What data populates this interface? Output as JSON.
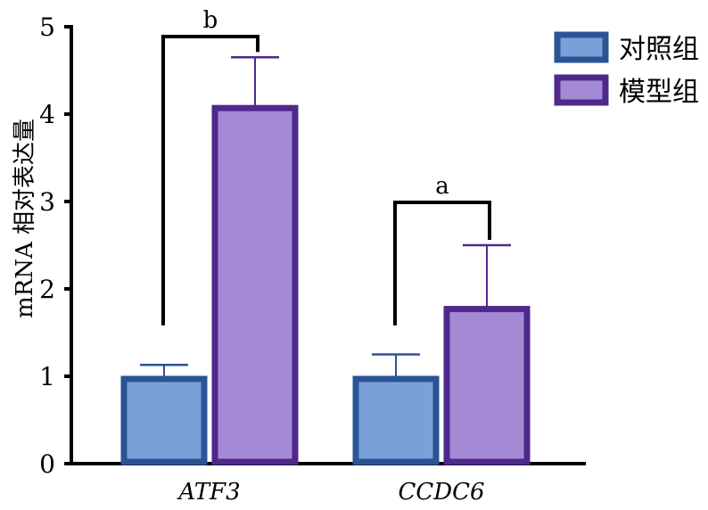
{
  "chart_data": {
    "type": "bar",
    "title": "",
    "xlabel": "",
    "ylabel": "mRNA 相对表达量",
    "ylim": [
      0,
      5
    ],
    "yticks": [
      "0",
      "1",
      "2",
      "3",
      "4",
      "5"
    ],
    "categories": [
      "ATF3",
      "CCDC6"
    ],
    "series": [
      {
        "name": "对照组",
        "values": [
          1.0,
          1.0
        ],
        "errors": [
          0.13,
          0.25
        ],
        "fill": "#7BA0D8",
        "border": "#2B5497"
      },
      {
        "name": "模型组",
        "values": [
          4.1,
          1.8
        ],
        "errors": [
          0.55,
          0.7
        ],
        "fill": "#A48AD4",
        "border": "#4F288C"
      }
    ],
    "annotations": [
      {
        "category": "ATF3",
        "label": "b"
      },
      {
        "category": "CCDC6",
        "label": "a"
      }
    ],
    "legend": "top-right"
  }
}
